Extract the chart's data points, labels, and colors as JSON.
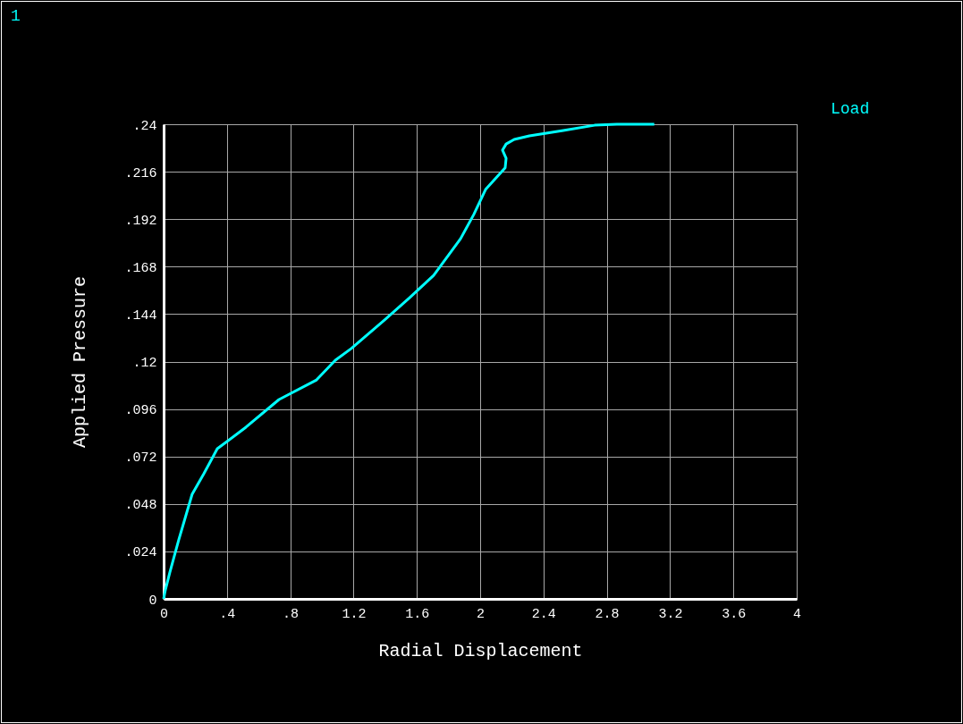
{
  "chart_data": {
    "type": "line",
    "xlabel": "Radial Displacement",
    "ylabel": "Applied Pressure",
    "annotations": [
      "1"
    ],
    "x": [
      0,
      0.011,
      0.04,
      0.096,
      0.18,
      0.254,
      0.339,
      0.52,
      0.729,
      0.966,
      1.085,
      1.186,
      1.395,
      1.554,
      1.706,
      1.876,
      1.96,
      2.034,
      2.158,
      2.164,
      2.141,
      2.164,
      2.215,
      2.311,
      2.525,
      2.723,
      2.864,
      3.1
    ],
    "series": [
      {
        "name": "Load",
        "color": "#00ffff",
        "values": [
          0,
          0.0045,
          0.0136,
          0.03,
          0.0529,
          0.0633,
          0.0759,
          0.0868,
          0.1008,
          0.1107,
          0.1207,
          0.1266,
          0.141,
          0.1523,
          0.1636,
          0.1821,
          0.1944,
          0.207,
          0.218,
          0.2228,
          0.2269,
          0.23,
          0.2323,
          0.2341,
          0.2368,
          0.2395,
          0.24,
          0.24
        ]
      }
    ],
    "xlim": [
      0,
      4
    ],
    "xticks": [
      0,
      {
        "value": 0.4,
        "label": ".4"
      },
      {
        "value": 0.8,
        "label": ".8"
      },
      1.2,
      1.6,
      2,
      2.4,
      2.8,
      3.2,
      3.6,
      4
    ],
    "ylim": [
      0,
      0.24
    ],
    "yticks": [
      0,
      {
        "value": 0.024,
        "label": ".024"
      },
      {
        "value": 0.048,
        "label": ".048"
      },
      {
        "value": 0.072,
        "label": ".072"
      },
      {
        "value": 0.096,
        "label": ".096"
      },
      {
        "value": 0.12,
        "label": ".12"
      },
      {
        "value": 0.144,
        "label": ".144"
      },
      {
        "value": 0.168,
        "label": ".168"
      },
      {
        "value": 0.192,
        "label": ".192"
      },
      {
        "value": 0.216,
        "label": ".216"
      },
      {
        "value": 0.24,
        "label": ".24"
      }
    ],
    "grid": true,
    "legend": "top right",
    "marker": "none",
    "line_style": "solid"
  }
}
